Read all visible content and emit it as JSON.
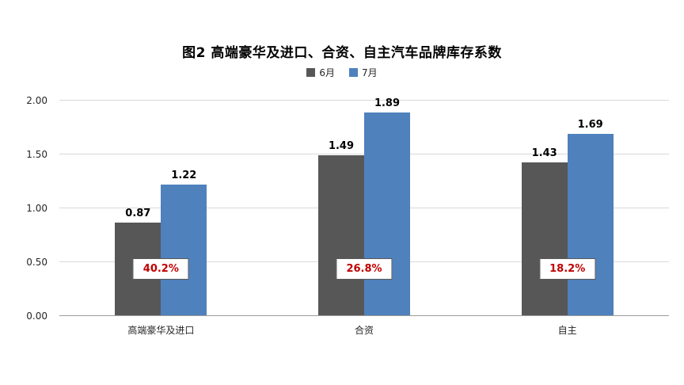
{
  "chart_data": {
    "type": "bar",
    "title": "图2  高端豪华及进口、合资、自主汽车品牌库存系数",
    "categories": [
      "高端豪华及进口",
      "合资",
      "自主"
    ],
    "series": [
      {
        "name": "6月",
        "color": "#575757",
        "values": [
          0.87,
          1.49,
          1.43
        ]
      },
      {
        "name": "7月",
        "color": "#4f81bd",
        "values": [
          1.22,
          1.89,
          1.69
        ]
      }
    ],
    "growth_labels": [
      "40.2%",
      "26.8%",
      "18.2%"
    ],
    "growth_label_color": "#c00000",
    "value_label_color": "#000000",
    "ylim": [
      0,
      2
    ],
    "yticks": [
      "0.00",
      "0.50",
      "1.00",
      "1.50",
      "2.00"
    ],
    "grid": true,
    "legend_position": "top"
  }
}
